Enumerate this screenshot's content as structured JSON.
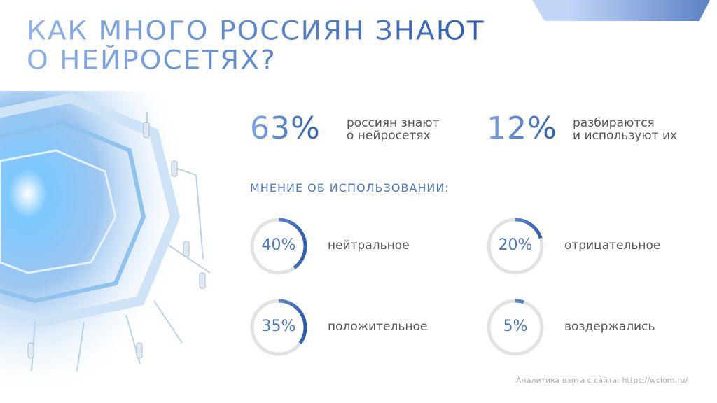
{
  "title": {
    "line1": "КАК МНОГО РОССИЯН ЗНАЮТ",
    "line2": "О НЕЙРОСЕТЯХ?"
  },
  "stats": [
    {
      "value": "63%",
      "label_line1": "россиян знают",
      "label_line2": "о нейросетях"
    },
    {
      "value": "12%",
      "label_line1": "разбираются",
      "label_line2": "и используют их"
    }
  ],
  "opinion_title": "МНЕНИЕ ОБ ИСПОЛЬЗОВАНИИ:",
  "opinions": [
    {
      "value": "40%",
      "percent": 40,
      "label": "нейтральное"
    },
    {
      "value": "20%",
      "percent": 20,
      "label": "отрицательное"
    },
    {
      "value": "35%",
      "percent": 35,
      "label": "положительное"
    },
    {
      "value": "5%",
      "percent": 5,
      "label": "воздержались"
    }
  ],
  "footer": "Аналитика взята с сайта: https://wciom.ru/",
  "colors": {
    "accent": "#4a78c8",
    "accent_dark": "#2f5eb0",
    "ring_track": "#e2e2e2",
    "text": "#555555"
  }
}
